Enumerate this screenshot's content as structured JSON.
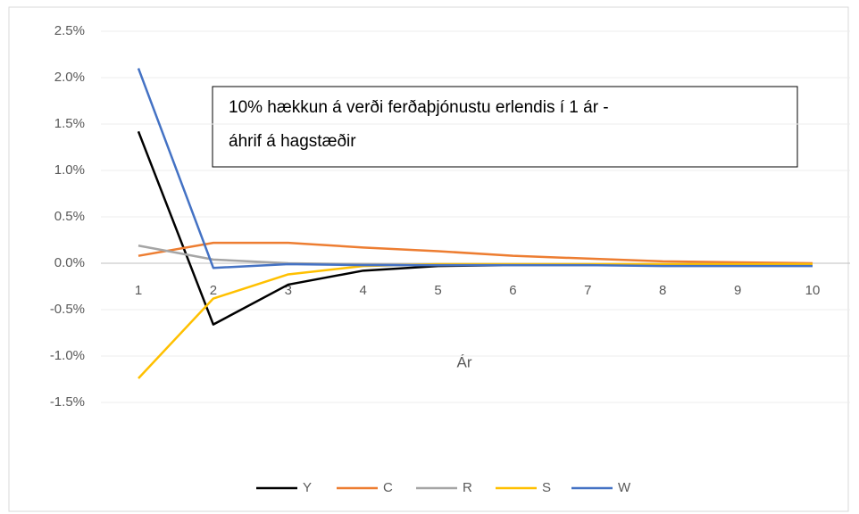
{
  "chart_data": {
    "type": "line",
    "annotation": [
      "10% hækkun á verði ferðaþjónustu erlendis í 1 ár -",
      "áhrif á hagstæðir"
    ],
    "x_label": "Ár",
    "categories": [
      "1",
      "2",
      "3",
      "4",
      "5",
      "6",
      "7",
      "8",
      "9",
      "10"
    ],
    "series": [
      {
        "name": "Y",
        "color": "#000000",
        "values": [
          1.42,
          -0.66,
          -0.23,
          -0.08,
          -0.03,
          -0.02,
          -0.02,
          -0.02,
          -0.02,
          -0.02
        ]
      },
      {
        "name": "C",
        "color": "#ed7d31",
        "values": [
          0.08,
          0.22,
          0.22,
          0.17,
          0.13,
          0.08,
          0.05,
          0.02,
          0.01,
          0.0
        ]
      },
      {
        "name": "R",
        "color": "#a5a5a5",
        "values": [
          0.19,
          0.04,
          0.0,
          -0.01,
          -0.02,
          -0.02,
          -0.02,
          -0.02,
          -0.02,
          -0.02
        ]
      },
      {
        "name": "S",
        "color": "#ffc000",
        "values": [
          -1.24,
          -0.38,
          -0.12,
          -0.03,
          -0.01,
          -0.01,
          -0.01,
          -0.01,
          -0.01,
          -0.01
        ]
      },
      {
        "name": "W",
        "color": "#4472c4",
        "values": [
          2.1,
          -0.05,
          -0.01,
          -0.02,
          -0.02,
          -0.02,
          -0.02,
          -0.03,
          -0.03,
          -0.03
        ]
      }
    ],
    "ylim": [
      -1.5,
      2.5
    ],
    "yticks": [
      {
        "value": 2.5,
        "label": "2.5%"
      },
      {
        "value": 2.0,
        "label": "2.0%"
      },
      {
        "value": 1.5,
        "label": "1.5%"
      },
      {
        "value": 1.0,
        "label": "1.0%"
      },
      {
        "value": 0.5,
        "label": "0.5%"
      },
      {
        "value": 0.0,
        "label": "0.0%"
      },
      {
        "value": -0.5,
        "label": "-0.5%"
      },
      {
        "value": -1.0,
        "label": "-1.0%"
      },
      {
        "value": -1.5,
        "label": "-1.5%"
      }
    ],
    "grid": true,
    "legend": "bottom"
  }
}
